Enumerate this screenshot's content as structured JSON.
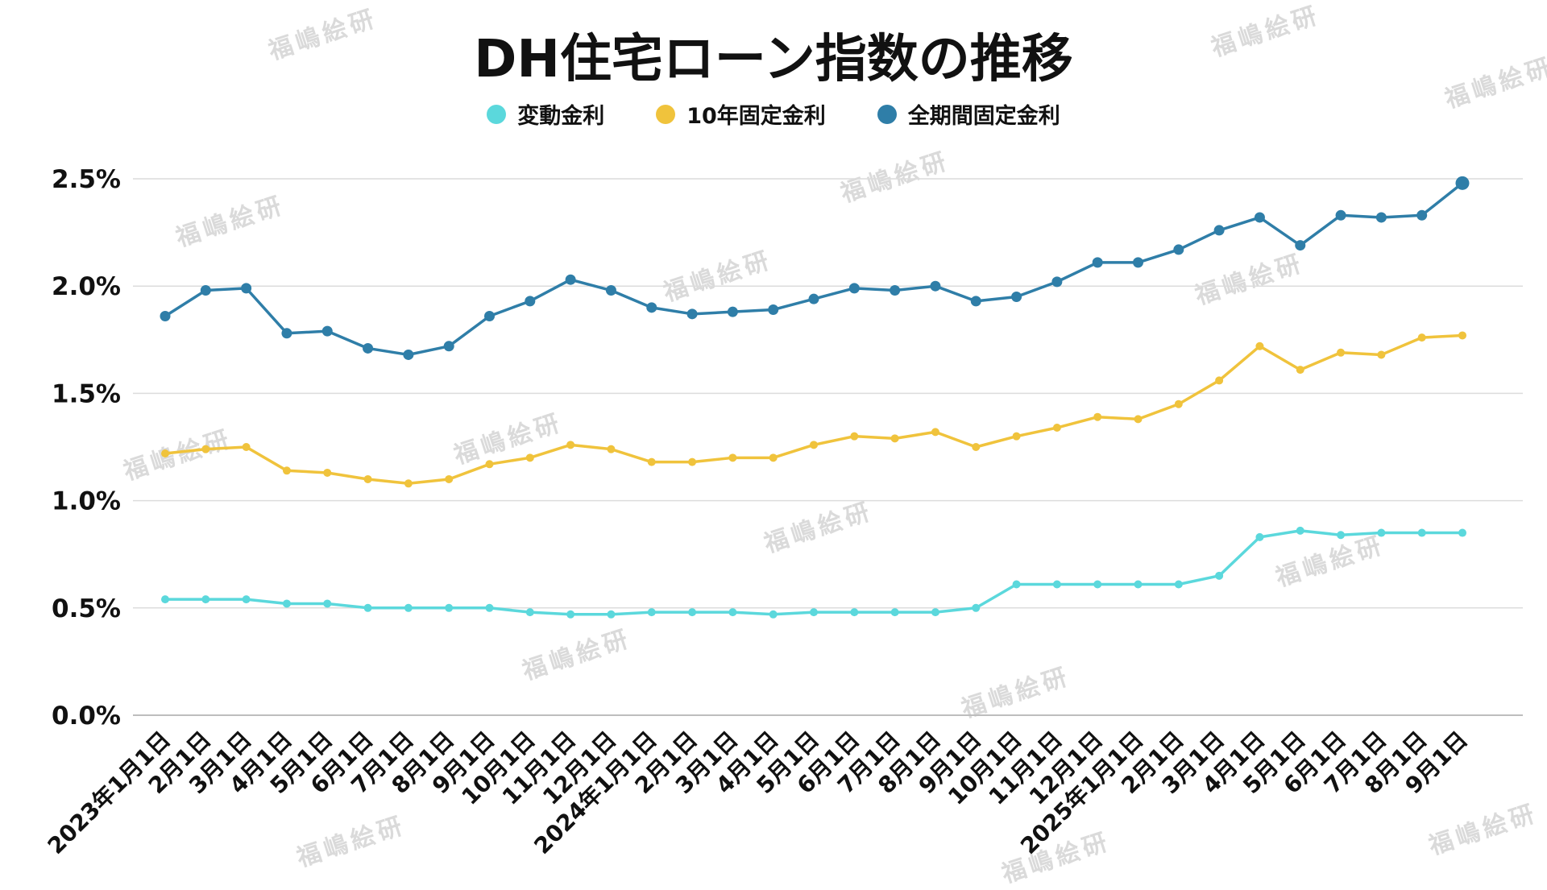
{
  "watermark": {
    "text": "福嶋絵研",
    "color": "#bbbbbb"
  },
  "chart_data": {
    "type": "line",
    "title": "DH住宅ローン指数の推移",
    "xlabel": "",
    "ylabel": "",
    "ylim": [
      0,
      2.5
    ],
    "y_ticks": [
      "0.0%",
      "0.5%",
      "1.0%",
      "1.5%",
      "2.0%",
      "2.5%"
    ],
    "grid": true,
    "legend_position": "top",
    "categories": [
      "2023年1月1日",
      "2月1日",
      "3月1日",
      "4月1日",
      "5月1日",
      "6月1日",
      "7月1日",
      "8月1日",
      "9月1日",
      "10月1日",
      "11月1日",
      "12月1日",
      "2024年1月1日",
      "2月1日",
      "3月1日",
      "4月1日",
      "5月1日",
      "6月1日",
      "7月1日",
      "8月1日",
      "9月1日",
      "10月1日",
      "11月1日",
      "12月1日",
      "2025年1月1日",
      "2月1日",
      "3月1日",
      "4月1日",
      "5月1日",
      "6月1日",
      "7月1日",
      "8月1日",
      "9月1日"
    ],
    "series": [
      {
        "name": "変動金利",
        "color": "#5BD8DC",
        "values": [
          0.54,
          0.54,
          0.54,
          0.52,
          0.52,
          0.5,
          0.5,
          0.5,
          0.5,
          0.48,
          0.47,
          0.47,
          0.48,
          0.48,
          0.48,
          0.47,
          0.48,
          0.48,
          0.48,
          0.48,
          0.5,
          0.61,
          0.61,
          0.61,
          0.61,
          0.61,
          0.65,
          0.83,
          0.86,
          0.84,
          0.85,
          0.85,
          0.85
        ]
      },
      {
        "name": "10年固定金利",
        "color": "#F0C33C",
        "values": [
          1.22,
          1.24,
          1.25,
          1.14,
          1.13,
          1.1,
          1.08,
          1.1,
          1.17,
          1.2,
          1.26,
          1.24,
          1.18,
          1.18,
          1.2,
          1.2,
          1.26,
          1.3,
          1.29,
          1.32,
          1.25,
          1.3,
          1.34,
          1.39,
          1.38,
          1.45,
          1.56,
          1.72,
          1.61,
          1.69,
          1.68,
          1.76,
          1.77
        ]
      },
      {
        "name": "全期間固定金利",
        "color": "#2F7EA8",
        "values": [
          1.86,
          1.98,
          1.99,
          1.78,
          1.79,
          1.71,
          1.68,
          1.72,
          1.86,
          1.93,
          2.03,
          1.98,
          1.9,
          1.87,
          1.88,
          1.89,
          1.94,
          1.99,
          1.98,
          2.0,
          1.93,
          1.95,
          2.02,
          2.11,
          2.11,
          2.17,
          2.26,
          2.32,
          2.19,
          2.33,
          2.32,
          2.33,
          2.48
        ]
      }
    ]
  }
}
